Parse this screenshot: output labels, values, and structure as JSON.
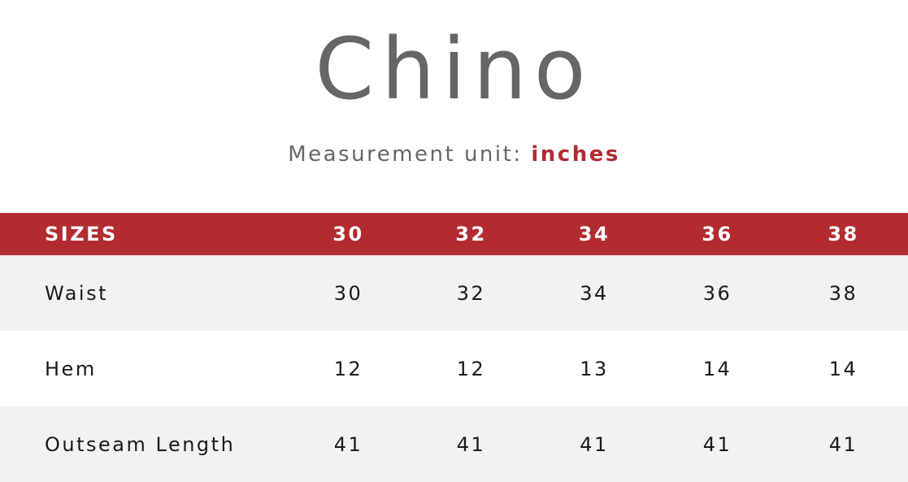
{
  "title": "Chino",
  "subtitle": {
    "label": "Measurement unit:",
    "unit": "inches"
  },
  "colors": {
    "accent": "#b22b30",
    "title_gray": "#666666",
    "row_alt": "#f2f2f2"
  },
  "table": {
    "header": [
      "SIZES",
      "30",
      "32",
      "34",
      "36",
      "38"
    ],
    "rows": [
      [
        "Waist",
        "30",
        "32",
        "34",
        "36",
        "38"
      ],
      [
        "Hem",
        "12",
        "12",
        "13",
        "14",
        "14"
      ],
      [
        "Outseam Length",
        "41",
        "41",
        "41",
        "41",
        "41"
      ]
    ]
  }
}
